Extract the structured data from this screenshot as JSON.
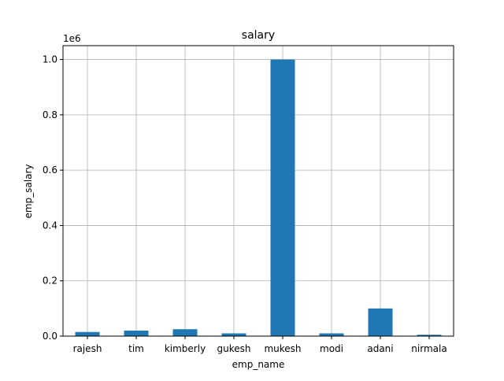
{
  "chart_data": {
    "type": "bar",
    "title": "salary",
    "xlabel": "emp_name",
    "ylabel": "emp_salary",
    "y_offset_label": "1e6",
    "categories": [
      "rajesh",
      "tim",
      "kimberly",
      "gukesh",
      "mukesh",
      "modi",
      "adani",
      "nirmala"
    ],
    "values": [
      15000,
      20000,
      25000,
      10000,
      1000000,
      10000,
      100000,
      5000
    ],
    "ylim": [
      0,
      1050000
    ],
    "yticks": [
      0,
      200000,
      400000,
      600000,
      800000,
      1000000
    ],
    "ytick_labels": [
      "0.0",
      "0.2",
      "0.4",
      "0.6",
      "0.8",
      "1.0"
    ],
    "grid": true,
    "bar_color": "#1f77b4"
  }
}
